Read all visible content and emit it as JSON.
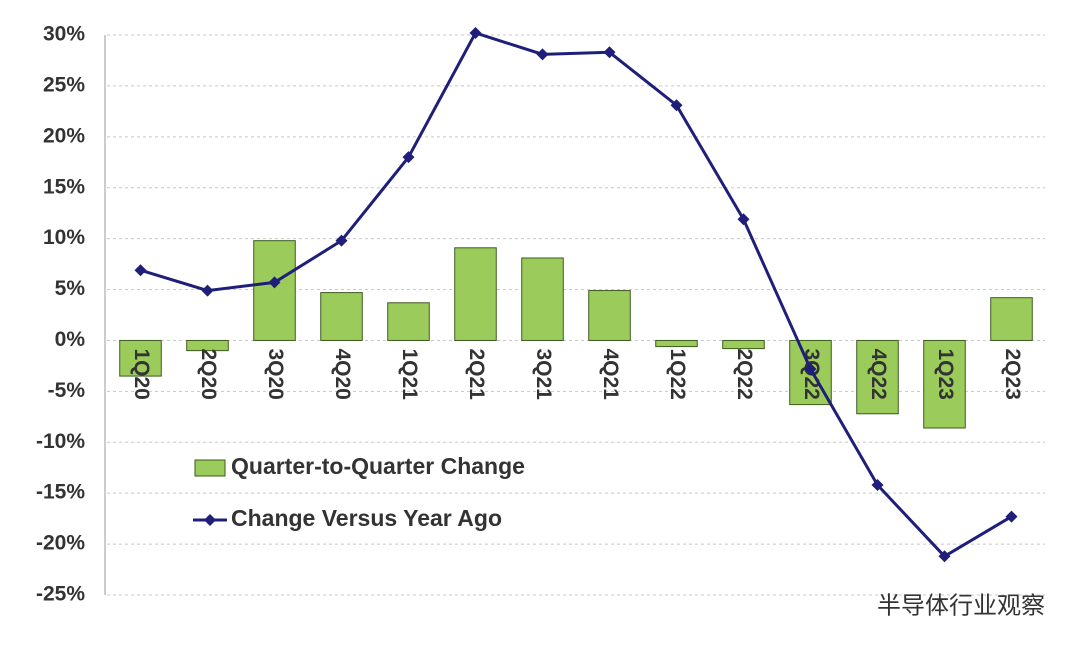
{
  "chart_data": {
    "type": "combo",
    "categories": [
      "1Q20",
      "2Q20",
      "3Q20",
      "4Q20",
      "1Q21",
      "2Q21",
      "3Q21",
      "4Q21",
      "1Q22",
      "2Q22",
      "3Q22",
      "4Q22",
      "1Q23",
      "2Q23"
    ],
    "series": [
      {
        "name": "Quarter-to-Quarter Change",
        "type": "bar",
        "color": "#9bcb5b",
        "values": [
          -3.5,
          -1.0,
          9.8,
          4.7,
          3.7,
          9.1,
          8.1,
          4.9,
          -0.6,
          -0.8,
          -6.3,
          -7.2,
          -8.6,
          4.2
        ]
      },
      {
        "name": "Change Versus Year Ago",
        "type": "line",
        "color": "#1f1f7a",
        "values": [
          6.9,
          4.9,
          5.7,
          9.8,
          18.0,
          30.2,
          28.1,
          28.3,
          23.1,
          11.9,
          -2.8,
          -14.2,
          -21.2,
          -17.3
        ]
      }
    ],
    "ylim": [
      -25,
      30
    ],
    "yticks": [
      {
        "value": -25,
        "label": "-25%"
      },
      {
        "value": -20,
        "label": "-20%"
      },
      {
        "value": -15,
        "label": "-15%"
      },
      {
        "value": -10,
        "label": "-10%"
      },
      {
        "value": -5,
        "label": "-5%"
      },
      {
        "value": 0,
        "label": "0%"
      },
      {
        "value": 5,
        "label": "5%"
      },
      {
        "value": 10,
        "label": "10%"
      },
      {
        "value": 15,
        "label": "15%"
      },
      {
        "value": 20,
        "label": "20%"
      },
      {
        "value": 25,
        "label": "25%"
      },
      {
        "value": 30,
        "label": "30%"
      }
    ],
    "grid": true,
    "legend": "lower-left",
    "watermark": "半导体行业观察"
  }
}
